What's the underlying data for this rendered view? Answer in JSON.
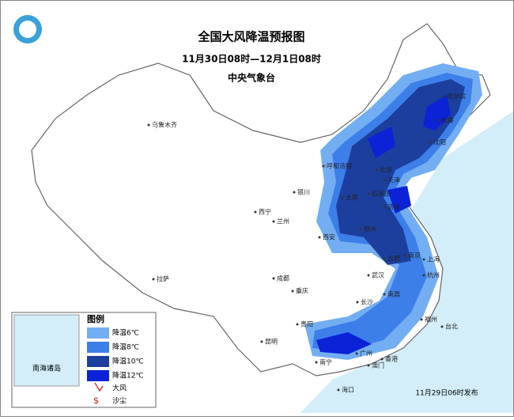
{
  "header": {
    "title": "全国大风降温预报图",
    "time_range": "11月30日08时—12月1日08时",
    "issuer": "中央气象台"
  },
  "legend": {
    "title": "图例",
    "items": [
      {
        "label": "降温6℃",
        "color": "#74aef2"
      },
      {
        "label": "降温8℃",
        "color": "#3d7fe9"
      },
      {
        "label": "降温10℃",
        "color": "#1c3f9e"
      },
      {
        "label": "降温12℃",
        "color": "#0b22d6"
      }
    ],
    "wind": "大风",
    "dust": "沙尘"
  },
  "inset_label": "南海诸岛",
  "cities": [
    "乌鲁木齐",
    "哈尔滨",
    "长春",
    "沈阳",
    "呼和浩特",
    "北京",
    "天津",
    "银川",
    "太原",
    "石家庄",
    "济南",
    "西宁",
    "兰州",
    "郑州",
    "西安",
    "合肥",
    "南京",
    "上海",
    "杭州",
    "武汉",
    "成都",
    "重庆",
    "拉萨",
    "长沙",
    "南昌",
    "福州",
    "台北",
    "贵阳",
    "昆明",
    "南宁",
    "广州",
    "香港",
    "澳门",
    "海口"
  ],
  "footer": "11月29日06时发布"
}
